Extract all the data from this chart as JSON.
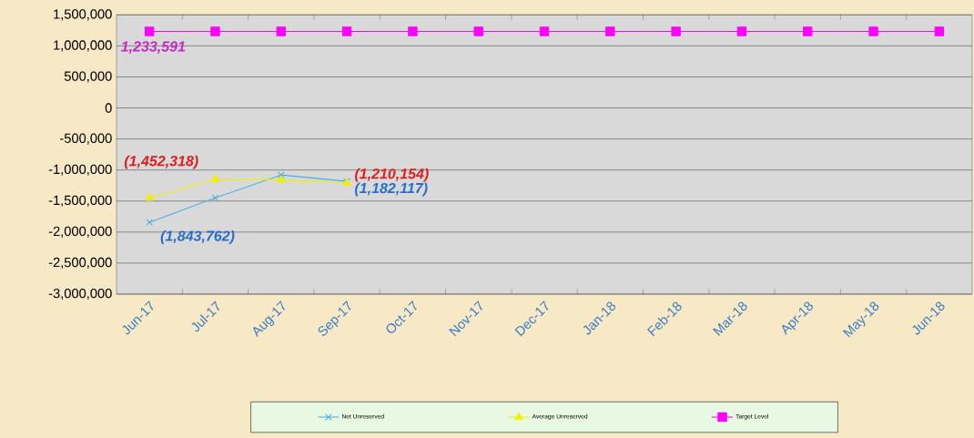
{
  "chart_data": {
    "type": "line",
    "categories": [
      "Jun-17",
      "Jul-17",
      "Aug-17",
      "Sep-17",
      "Oct-17",
      "Nov-17",
      "Dec-17",
      "Jan-18",
      "Feb-18",
      "Mar-18",
      "Apr-18",
      "May-18",
      "Jun-18"
    ],
    "series": [
      {
        "name": "Net Unreserved",
        "color": "#4ab0e0",
        "marker": "cross",
        "values": [
          -1843762,
          -1450000,
          -1080000,
          -1182117,
          null,
          null,
          null,
          null,
          null,
          null,
          null,
          null,
          null
        ],
        "value_labels": [
          "(1,843,762)",
          null,
          null,
          "(1,182,117)",
          null,
          null,
          null,
          null,
          null,
          null,
          null,
          null,
          null
        ]
      },
      {
        "name": "Average Unreserved",
        "color": "#f0f000",
        "marker": "triangle",
        "values": [
          -1452318,
          -1150000,
          -1160000,
          -1210154,
          null,
          null,
          null,
          null,
          null,
          null,
          null,
          null,
          null
        ],
        "value_labels": [
          "(1,452,318)",
          null,
          null,
          "(1,210,154)",
          null,
          null,
          null,
          null,
          null,
          null,
          null,
          null,
          null
        ]
      },
      {
        "name": "Target Level",
        "color": "#ff00ff",
        "marker": "square",
        "values": [
          1233591,
          1233591,
          1233591,
          1233591,
          1233591,
          1233591,
          1233591,
          1233591,
          1233591,
          1233591,
          1233591,
          1233591,
          1233591
        ],
        "value_labels": [
          "1,233,591",
          null,
          null,
          null,
          null,
          null,
          null,
          null,
          null,
          null,
          null,
          null,
          null
        ]
      }
    ],
    "ylim": [
      -3000000,
      1500000
    ],
    "yticks": [
      {
        "value": -3000000,
        "label": "-3,000,000"
      },
      {
        "value": -2500000,
        "label": "-2,500,000"
      },
      {
        "value": -2000000,
        "label": "-2,000,000"
      },
      {
        "value": -1500000,
        "label": "-1,500,000"
      },
      {
        "value": -1000000,
        "label": "-1,000,000"
      },
      {
        "value": -500000,
        "label": "-500,000"
      },
      0,
      {
        "value": 500000,
        "label": "500,000"
      },
      {
        "value": 1000000,
        "label": "1,000,000"
      },
      {
        "value": 1500000,
        "label": "1,500,000"
      }
    ],
    "grid": "y",
    "legend": "bottom",
    "line_style": "solid"
  }
}
